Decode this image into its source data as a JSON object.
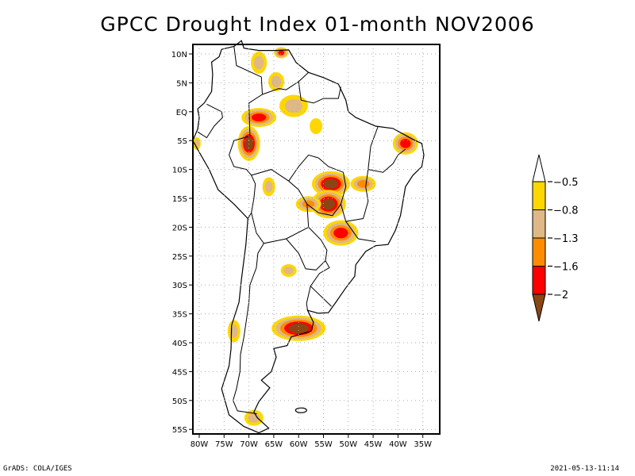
{
  "title": "GPCC Drought Index 01-month NOV2006",
  "footer": {
    "left": "GrADS: COLA/IGES",
    "right": "2021-05-13-11:14"
  },
  "map": {
    "region": "South America",
    "lon_range": [
      -81.3,
      -32.8
    ],
    "lat_range": [
      11.7,
      -56
    ],
    "lat_ticks": [
      {
        "value": 10,
        "label": "10N"
      },
      {
        "value": 5,
        "label": "5N"
      },
      {
        "value": 0,
        "label": "EQ"
      },
      {
        "value": -5,
        "label": "5S"
      },
      {
        "value": -10,
        "label": "10S"
      },
      {
        "value": -15,
        "label": "15S"
      },
      {
        "value": -20,
        "label": "20S"
      },
      {
        "value": -25,
        "label": "25S"
      },
      {
        "value": -30,
        "label": "30S"
      },
      {
        "value": -35,
        "label": "35S"
      },
      {
        "value": -40,
        "label": "40S"
      },
      {
        "value": -45,
        "label": "45S"
      },
      {
        "value": -50,
        "label": "50S"
      },
      {
        "value": -55,
        "label": "55S"
      }
    ],
    "lon_ticks": [
      {
        "value": -80,
        "label": "80W"
      },
      {
        "value": -75,
        "label": "75W"
      },
      {
        "value": -70,
        "label": "70W"
      },
      {
        "value": -65,
        "label": "65W"
      },
      {
        "value": -60,
        "label": "60W"
      },
      {
        "value": -55,
        "label": "55W"
      },
      {
        "value": -50,
        "label": "50W"
      },
      {
        "value": -45,
        "label": "45W"
      },
      {
        "value": -40,
        "label": "40W"
      },
      {
        "value": -35,
        "label": "35W"
      }
    ],
    "grid": "dotted"
  },
  "colorbar": {
    "levels": [
      "-0.5",
      "-0.8",
      "-1.3",
      "-1.6",
      "-2"
    ],
    "colors": {
      "above": "#ffffff",
      "bins": [
        "#ffd700",
        "#deb887",
        "#ff8c00",
        "#ff0000"
      ],
      "below": "#8b4513"
    }
  },
  "drought_patches": [
    {
      "name": "venezuela-north",
      "lon": -63.5,
      "lat": 10.2,
      "severity": 4
    },
    {
      "name": "colombia-north",
      "lon": -68,
      "lat": 8.5,
      "severity": 2
    },
    {
      "name": "colombia-venezuela",
      "lon": -64.5,
      "lat": 5.2,
      "severity": 2
    },
    {
      "name": "amazon-northwest",
      "lon": -68,
      "lat": -1,
      "severity": 4
    },
    {
      "name": "amazon-west",
      "lon": -70,
      "lat": -5.5,
      "severity": 5
    },
    {
      "name": "roraima-east",
      "lon": -61,
      "lat": 1,
      "severity": 2
    },
    {
      "name": "para",
      "lon": -56.5,
      "lat": -2.5,
      "severity": 1
    },
    {
      "name": "northeast-brazil",
      "lon": -38.5,
      "lat": -5.5,
      "severity": 4
    },
    {
      "name": "mato-grosso",
      "lon": -53.5,
      "lat": -12.5,
      "severity": 5
    },
    {
      "name": "tocantins-goias",
      "lon": -47,
      "lat": -12.5,
      "severity": 3
    },
    {
      "name": "mato-grosso-south",
      "lon": -54,
      "lat": -16,
      "severity": 5
    },
    {
      "name": "bolivia-east",
      "lon": -58,
      "lat": -16,
      "severity": 3
    },
    {
      "name": "bolivia-west",
      "lon": -66,
      "lat": -13,
      "severity": 2
    },
    {
      "name": "parana-sao-paulo",
      "lon": -51.5,
      "lat": -21,
      "severity": 4
    },
    {
      "name": "argentina-north",
      "lon": -62,
      "lat": -27.5,
      "severity": 2
    },
    {
      "name": "buenos-aires",
      "lon": -60,
      "lat": -37.5,
      "severity": 5
    },
    {
      "name": "chile-central",
      "lon": -73,
      "lat": -38,
      "severity": 2
    },
    {
      "name": "patagonia-south",
      "lon": -69,
      "lat": -53,
      "severity": 2
    },
    {
      "name": "peru-coast",
      "lon": -80.5,
      "lat": -5.5,
      "severity": 2
    }
  ]
}
